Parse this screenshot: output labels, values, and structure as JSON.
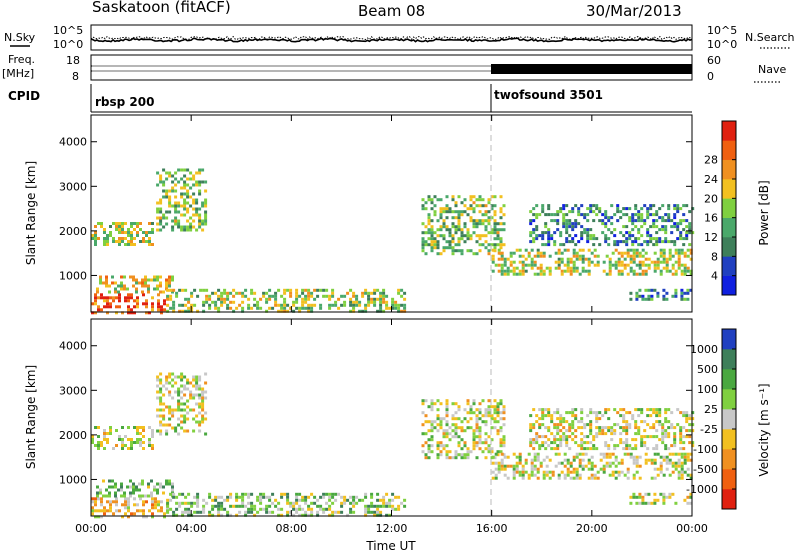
{
  "header": {
    "station": "Saskatoon (fitACF)",
    "beam": "Beam 08",
    "date": "30/Mar/2013"
  },
  "strip_labels": {
    "nsky": "N.Sky",
    "nsky_ticks": [
      "10^5",
      "10^0"
    ],
    "nsearch": "N.Search",
    "nsearch_ticks": [
      "10^5",
      "10^0"
    ],
    "freq": "Freq.",
    "freq_unit": "[MHz]",
    "freq_ticks": [
      "18",
      "8"
    ],
    "nave": "Nave",
    "nave_ticks": [
      "60",
      "0"
    ],
    "cpid": "CPID"
  },
  "cpid_modes": [
    {
      "name": "rbsp 200",
      "start_hour": 0
    },
    {
      "name": "twofsound 3501",
      "start_hour": 16
    }
  ],
  "chart_data": [
    {
      "type": "heatmap",
      "name": "power",
      "ylabel": "Slant Range [km]",
      "xlim": [
        0,
        24
      ],
      "ylim": [
        180,
        4600
      ],
      "yticks": [
        "1000",
        "2000",
        "3000",
        "4000"
      ],
      "xticks": [
        "00:00",
        "04:00",
        "08:00",
        "12:00",
        "16:00",
        "20:00",
        "00:00"
      ],
      "colorbar": {
        "label": "Power [dB]",
        "ticks": [
          "4",
          "8",
          "12",
          "16",
          "20",
          "24",
          "28"
        ],
        "colors": [
          "#1020e0",
          "#2040c0",
          "#3e7f5a",
          "#4aa86a",
          "#7fd040",
          "#f2c020",
          "#f09020",
          "#f06010",
          "#e02010"
        ]
      },
      "regions": [
        {
          "hours": [
            0.0,
            3.0
          ],
          "km": [
            180,
            600
          ],
          "level": 0.85
        },
        {
          "hours": [
            0.2,
            3.2
          ],
          "km": [
            600,
            1000
          ],
          "level": 0.6
        },
        {
          "hours": [
            0.0,
            2.5
          ],
          "km": [
            1700,
            2200
          ],
          "level": 0.55
        },
        {
          "hours": [
            2.6,
            4.6
          ],
          "km": [
            2000,
            3400
          ],
          "level": 0.45
        },
        {
          "hours": [
            3.0,
            12.5
          ],
          "km": [
            180,
            700
          ],
          "level": 0.5
        },
        {
          "hours": [
            13.2,
            16.5
          ],
          "km": [
            1500,
            2800
          ],
          "level": 0.45
        },
        {
          "hours": [
            16.0,
            24.0
          ],
          "km": [
            1000,
            1600
          ],
          "level": 0.55
        },
        {
          "hours": [
            17.5,
            24.0
          ],
          "km": [
            1700,
            2600
          ],
          "level": 0.3
        },
        {
          "hours": [
            21.5,
            24.0
          ],
          "km": [
            450,
            700
          ],
          "level": 0.3
        }
      ]
    },
    {
      "type": "heatmap",
      "name": "velocity",
      "ylabel": "Slant Range [km]",
      "xlabel": "Time UT",
      "xlim": [
        0,
        24
      ],
      "ylim": [
        180,
        4600
      ],
      "yticks": [
        "1000",
        "2000",
        "3000",
        "4000"
      ],
      "xticks": [
        "00:00",
        "04:00",
        "08:00",
        "12:00",
        "16:00",
        "20:00",
        "00:00"
      ],
      "colorbar": {
        "label": "Velocity [m s⁻¹]",
        "ticks": [
          "1000",
          "500",
          "100",
          "25",
          "-25",
          "-100",
          "-500",
          "-1000"
        ],
        "colors": [
          "#2040c0",
          "#3e7f5a",
          "#4aa840",
          "#80d040",
          "#c8c8c8",
          "#f2c020",
          "#f09020",
          "#f06010",
          "#e02010"
        ]
      },
      "regions": [
        {
          "hours": [
            0.0,
            3.0
          ],
          "km": [
            180,
            600
          ],
          "level": 0.62
        },
        {
          "hours": [
            0.2,
            3.2
          ],
          "km": [
            600,
            1000
          ],
          "level": 0.35
        },
        {
          "hours": [
            0.0,
            2.5
          ],
          "km": [
            1700,
            2200
          ],
          "level": 0.5
        },
        {
          "hours": [
            2.6,
            4.6
          ],
          "km": [
            2000,
            3400
          ],
          "level": 0.5
        },
        {
          "hours": [
            3.0,
            12.5
          ],
          "km": [
            180,
            700
          ],
          "level": 0.4
        },
        {
          "hours": [
            13.2,
            16.5
          ],
          "km": [
            1500,
            2800
          ],
          "level": 0.5
        },
        {
          "hours": [
            16.0,
            24.0
          ],
          "km": [
            1000,
            1600
          ],
          "level": 0.5
        },
        {
          "hours": [
            17.5,
            24.0
          ],
          "km": [
            1700,
            2600
          ],
          "level": 0.5
        },
        {
          "hours": [
            21.5,
            24.0
          ],
          "km": [
            450,
            700
          ],
          "level": 0.5
        }
      ]
    }
  ]
}
